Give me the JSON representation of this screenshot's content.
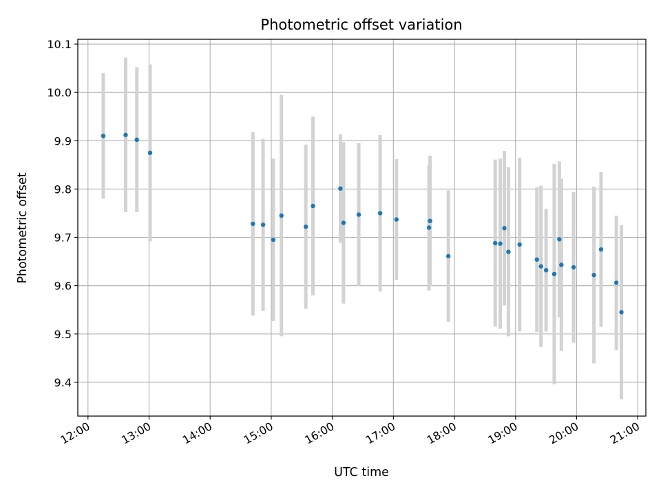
{
  "chart_data": {
    "type": "scatter",
    "title": "Photometric offset variation",
    "xlabel": "UTC time",
    "ylabel": "Photometric offset",
    "x_ticks": [
      "12:00",
      "13:00",
      "14:00",
      "15:00",
      "16:00",
      "17:00",
      "18:00",
      "19:00",
      "20:00",
      "21:00"
    ],
    "y_ticks": [
      "9.4",
      "9.5",
      "9.6",
      "9.7",
      "9.8",
      "9.9",
      "10.0",
      "10.1"
    ],
    "xlim": [
      "11:50",
      "21:08"
    ],
    "ylim": [
      9.33,
      10.11
    ],
    "grid": true,
    "point_color": "#1f77b4",
    "errorbar_color": "#d3d3d3",
    "points": [
      {
        "t": "12:15",
        "y": 9.91,
        "err": 0.13
      },
      {
        "t": "12:37",
        "y": 9.912,
        "err": 0.16
      },
      {
        "t": "12:48",
        "y": 9.902,
        "err": 0.15
      },
      {
        "t": "13:01",
        "y": 9.875,
        "err": 0.183
      },
      {
        "t": "14:42",
        "y": 9.728,
        "err": 0.19
      },
      {
        "t": "14:52",
        "y": 9.726,
        "err": 0.178
      },
      {
        "t": "15:02",
        "y": 9.695,
        "err": 0.168
      },
      {
        "t": "15:10",
        "y": 9.745,
        "err": 0.25
      },
      {
        "t": "15:34",
        "y": 9.722,
        "err": 0.17
      },
      {
        "t": "15:41",
        "y": 9.765,
        "err": 0.185
      },
      {
        "t": "16:08",
        "y": 9.801,
        "err": 0.112
      },
      {
        "t": "16:11",
        "y": 9.73,
        "err": 0.167
      },
      {
        "t": "16:26",
        "y": 9.747,
        "err": 0.148
      },
      {
        "t": "16:47",
        "y": 9.75,
        "err": 0.162
      },
      {
        "t": "17:03",
        "y": 9.737,
        "err": 0.125
      },
      {
        "t": "17:35",
        "y": 9.72,
        "err": 0.13
      },
      {
        "t": "17:36",
        "y": 9.734,
        "err": 0.135
      },
      {
        "t": "17:54",
        "y": 9.661,
        "err": 0.136
      },
      {
        "t": "18:40",
        "y": 9.688,
        "err": 0.173
      },
      {
        "t": "18:45",
        "y": 9.687,
        "err": 0.176
      },
      {
        "t": "18:49",
        "y": 9.719,
        "err": 0.16
      },
      {
        "t": "18:53",
        "y": 9.67,
        "err": 0.175
      },
      {
        "t": "19:04",
        "y": 9.685,
        "err": 0.18
      },
      {
        "t": "19:21",
        "y": 9.654,
        "err": 0.15
      },
      {
        "t": "19:25",
        "y": 9.64,
        "err": 0.167
      },
      {
        "t": "19:30",
        "y": 9.632,
        "err": 0.127
      },
      {
        "t": "19:38",
        "y": 9.624,
        "err": 0.228
      },
      {
        "t": "19:43",
        "y": 9.696,
        "err": 0.161
      },
      {
        "t": "19:45",
        "y": 9.643,
        "err": 0.178
      },
      {
        "t": "19:57",
        "y": 9.638,
        "err": 0.156
      },
      {
        "t": "20:17",
        "y": 9.622,
        "err": 0.183
      },
      {
        "t": "20:24",
        "y": 9.675,
        "err": 0.16
      },
      {
        "t": "20:39",
        "y": 9.606,
        "err": 0.139
      },
      {
        "t": "20:44",
        "y": 9.545,
        "err": 0.18
      }
    ]
  }
}
